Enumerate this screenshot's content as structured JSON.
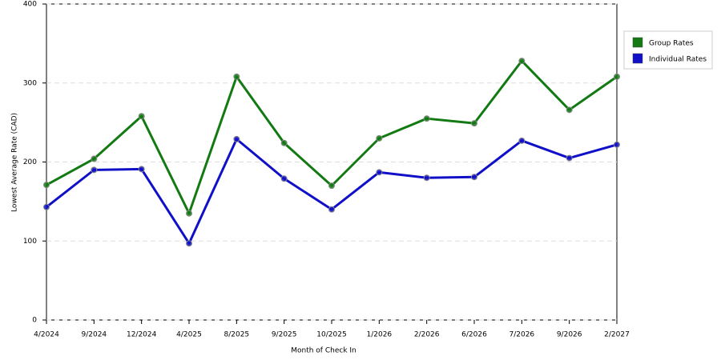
{
  "chart_data": {
    "type": "line",
    "x_label": "Month of Check In",
    "y_label": "Lowest Average Rate (CAD)",
    "categories": [
      "4/2024",
      "9/2024",
      "12/2024",
      "4/2025",
      "8/2025",
      "9/2025",
      "10/2025",
      "1/2026",
      "2/2026",
      "6/2026",
      "7/2026",
      "9/2026",
      "2/2027"
    ],
    "series": [
      {
        "name": "Group Rates",
        "color": "#137a13",
        "values": [
          171,
          204,
          258,
          135,
          308,
          224,
          170,
          230,
          255,
          249,
          328,
          266,
          308
        ]
      },
      {
        "name": "Individual Rates",
        "color": "#1010c8",
        "values": [
          143,
          190,
          191,
          97,
          229,
          179,
          140,
          187,
          180,
          181,
          227,
          205,
          222
        ]
      }
    ],
    "ylim": [
      0,
      400
    ],
    "yticks": [
      0,
      100,
      200,
      300,
      400
    ],
    "grid": true,
    "legend": "right"
  }
}
